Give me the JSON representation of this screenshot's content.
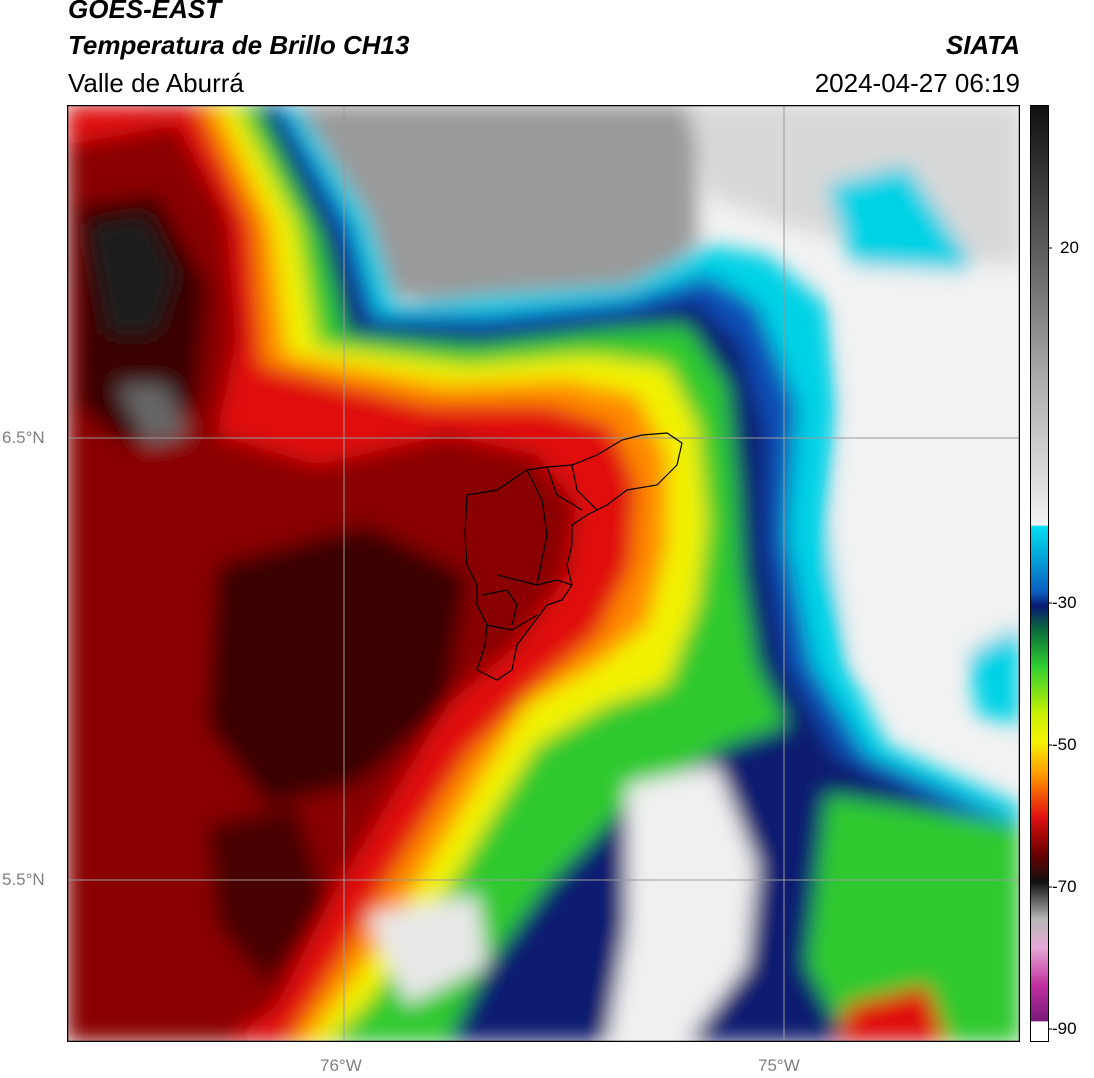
{
  "header": {
    "satellite": "GOES-EAST",
    "product": "Temperatura de Brillo CH13",
    "region": "Valle de Aburrá",
    "agency": "SIATA",
    "timestamp": "2024-04-27 06:19"
  },
  "map": {
    "lat_labels": [
      "6.5°N",
      "5.5°N"
    ],
    "lon_labels": [
      "76°W",
      "75°W"
    ],
    "gridline_color": "#9a9a9a",
    "boundary_color": "#000000"
  },
  "colorbar": {
    "ticks": [
      "20",
      "-30",
      "-50",
      "-70",
      "-90"
    ],
    "colors": {
      "warm_top": "#111111",
      "warm_mid": "#8a8a8a",
      "warm_low": "#f2f2f2",
      "cyan": "#00d8ea",
      "blue": "#0a4fb5",
      "navy": "#0a1a6e",
      "green": "#2dcc2d",
      "yellow": "#f4f400",
      "orange": "#ff8a00",
      "red": "#e01010",
      "darkred": "#5a0000",
      "magenta": "#e25ab5",
      "purple": "#8a1a8a"
    }
  }
}
